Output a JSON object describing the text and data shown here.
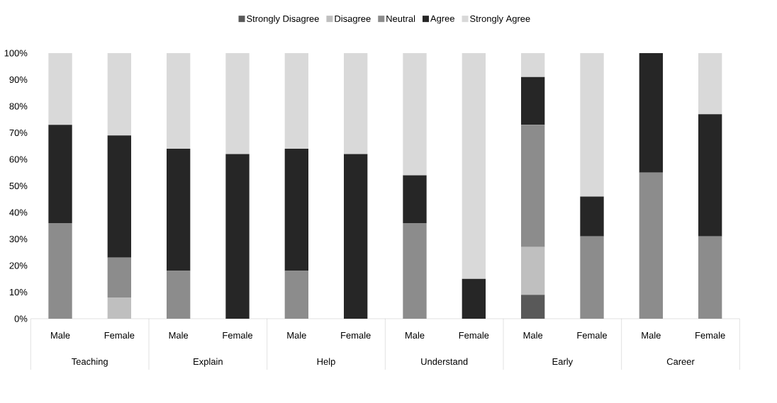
{
  "chart_data": {
    "type": "bar",
    "stacked": true,
    "legend": "top",
    "categories": [
      "Male",
      "Female",
      "Male",
      "Female",
      "Male",
      "Female",
      "Male",
      "Female",
      "Male",
      "Female",
      "Male",
      "Female"
    ],
    "annotations": [
      "Teaching",
      "Explain",
      "Help",
      "Understand",
      "Early",
      "Career"
    ],
    "ylim": [
      0,
      100
    ],
    "yticks": [
      {
        "value": 0,
        "label": "0%"
      },
      {
        "value": 10,
        "label": "10%"
      },
      {
        "value": 20,
        "label": "20%"
      },
      {
        "value": 30,
        "label": "30%"
      },
      {
        "value": 40,
        "label": "40%"
      },
      {
        "value": 50,
        "label": "50%"
      },
      {
        "value": 60,
        "label": "60%"
      },
      {
        "value": 70,
        "label": "70%"
      },
      {
        "value": 80,
        "label": "80%"
      },
      {
        "value": 90,
        "label": "90%"
      },
      {
        "value": 100,
        "label": "100%"
      }
    ],
    "series": [
      {
        "name": "Strongly Disagree",
        "color": "#595959",
        "values": [
          0,
          0,
          0,
          0,
          0,
          0,
          0,
          0,
          9,
          0,
          0,
          0
        ]
      },
      {
        "name": "Disagree",
        "color": "#bfbfbf",
        "values": [
          0,
          8,
          0,
          0,
          0,
          0,
          0,
          0,
          18,
          0,
          0,
          0
        ]
      },
      {
        "name": "Neutral",
        "color": "#8c8c8c",
        "values": [
          36,
          15,
          18,
          0,
          18,
          0,
          36,
          0,
          46,
          31,
          55,
          31
        ]
      },
      {
        "name": "Agree",
        "color": "#262626",
        "values": [
          37,
          46,
          46,
          62,
          46,
          62,
          18,
          15,
          18,
          15,
          45,
          46
        ]
      },
      {
        "name": "Strongly Agree",
        "color": "#d9d9d9",
        "values": [
          27,
          31,
          36,
          38,
          36,
          38,
          46,
          85,
          9,
          54,
          0,
          23
        ]
      }
    ]
  }
}
